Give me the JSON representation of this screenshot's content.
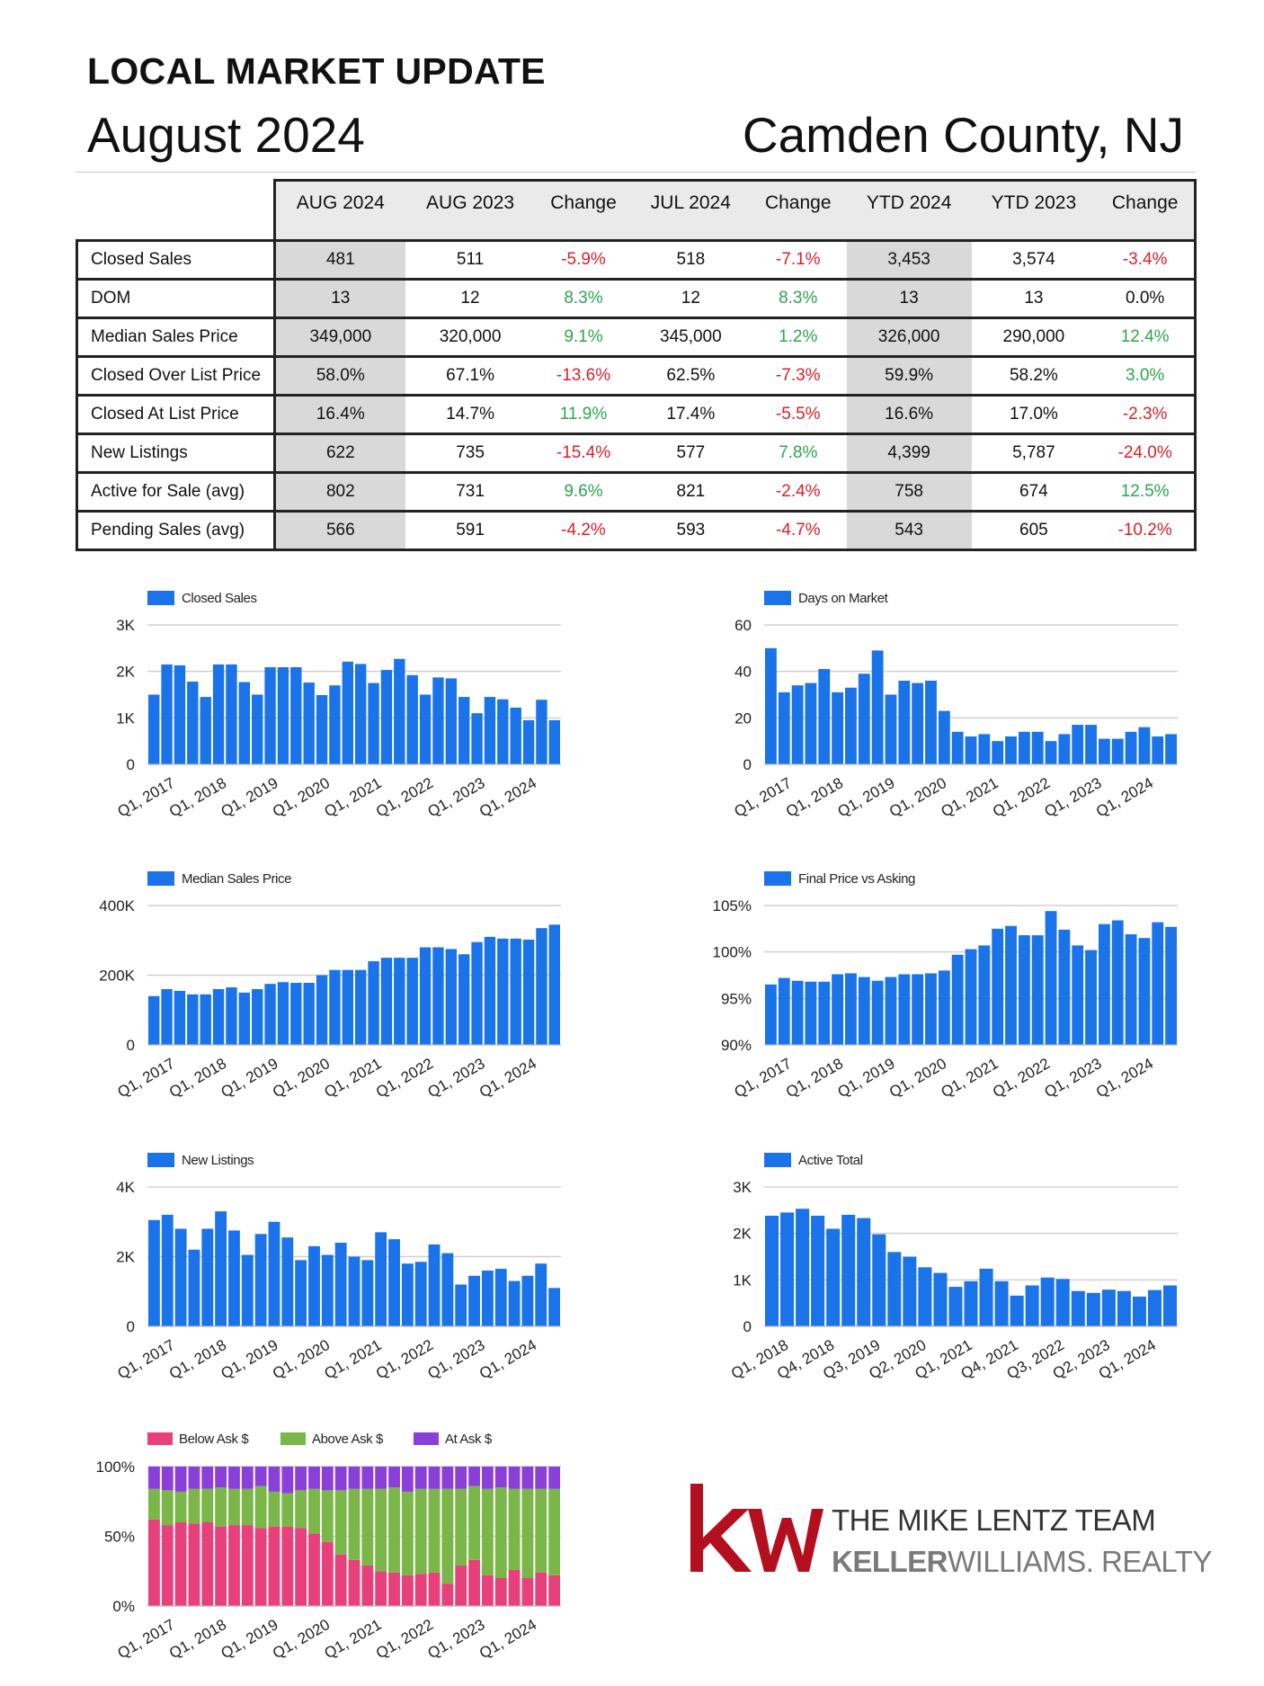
{
  "header": {
    "title": "LOCAL MARKET UPDATE",
    "month": "August 2024",
    "county": "Camden County, NJ"
  },
  "stats_table": {
    "columns": [
      "AUG 2024",
      "AUG 2023",
      "Change",
      "JUL 2024",
      "Change",
      "YTD 2024",
      "YTD 2023",
      "Change"
    ],
    "rows": [
      {
        "label": "Closed Sales",
        "cells": [
          "481",
          "511",
          "-5.9%",
          "518",
          "-7.1%",
          "3,453",
          "3,574",
          "-3.4%"
        ]
      },
      {
        "label": "DOM",
        "cells": [
          "13",
          "12",
          "8.3%",
          "12",
          "8.3%",
          "13",
          "13",
          "0.0%"
        ]
      },
      {
        "label": "Median Sales Price",
        "cells": [
          "349,000",
          "320,000",
          "9.1%",
          "345,000",
          "1.2%",
          "326,000",
          "290,000",
          "12.4%"
        ]
      },
      {
        "label": "Closed Over List Price",
        "cells": [
          "58.0%",
          "67.1%",
          "-13.6%",
          "62.5%",
          "-7.3%",
          "59.9%",
          "58.2%",
          "3.0%"
        ]
      },
      {
        "label": "Closed At List Price",
        "cells": [
          "16.4%",
          "14.7%",
          "11.9%",
          "17.4%",
          "-5.5%",
          "16.6%",
          "17.0%",
          "-2.3%"
        ]
      },
      {
        "label": "New Listings",
        "cells": [
          "622",
          "735",
          "-15.4%",
          "577",
          "7.8%",
          "4,399",
          "5,787",
          "-24.0%"
        ]
      },
      {
        "label": "Active for Sale (avg)",
        "cells": [
          "802",
          "731",
          "9.6%",
          "821",
          "-2.4%",
          "758",
          "674",
          "12.5%"
        ]
      },
      {
        "label": "Pending Sales (avg)",
        "cells": [
          "566",
          "591",
          "-4.2%",
          "593",
          "-4.7%",
          "543",
          "605",
          "-10.2%"
        ]
      }
    ],
    "colors": {
      "negative": "#d8212a",
      "positive": "#2ea44f",
      "shade": "#d9d9d9"
    }
  },
  "chart_data": [
    {
      "id": "closed-sales",
      "type": "bar",
      "legend": "Closed Sales",
      "color": "#1a73e8",
      "x_tick_labels": [
        "Q1, 2017",
        "Q1, 2018",
        "Q1, 2019",
        "Q1, 2020",
        "Q1, 2021",
        "Q1, 2022",
        "Q1, 2023",
        "Q1, 2024"
      ],
      "y_ticks": [
        0,
        1000,
        2000,
        3000
      ],
      "y_tick_labels": [
        "0",
        "1K",
        "2K",
        "3K"
      ],
      "ylim": [
        0,
        3000
      ],
      "values": [
        1500,
        2150,
        2130,
        1780,
        1450,
        2150,
        2150,
        1770,
        1500,
        2090,
        2090,
        2090,
        1760,
        1490,
        1700,
        2210,
        2160,
        1750,
        2030,
        2270,
        1920,
        1500,
        1870,
        1850,
        1450,
        1100,
        1450,
        1400,
        1220,
        950,
        1390,
        950
      ]
    },
    {
      "id": "days-on-market",
      "type": "bar",
      "legend": "Days on Market",
      "color": "#1a73e8",
      "x_tick_labels": [
        "Q1, 2017",
        "Q1, 2018",
        "Q1, 2019",
        "Q1, 2020",
        "Q1, 2021",
        "Q1, 2022",
        "Q1, 2023",
        "Q1, 2024"
      ],
      "y_ticks": [
        0,
        20,
        40,
        60
      ],
      "y_tick_labels": [
        "0",
        "20",
        "40",
        "60"
      ],
      "ylim": [
        0,
        60
      ],
      "values": [
        50,
        31,
        34,
        35,
        41,
        31,
        33,
        39,
        49,
        30,
        36,
        35,
        36,
        23,
        14,
        12,
        13,
        10,
        12,
        14,
        14,
        10,
        13,
        17,
        17,
        11,
        11,
        14,
        16,
        12,
        13
      ]
    },
    {
      "id": "median-sales-price",
      "type": "bar",
      "legend": "Median Sales Price",
      "color": "#1a73e8",
      "x_tick_labels": [
        "Q1, 2017",
        "Q1, 2018",
        "Q1, 2019",
        "Q1, 2020",
        "Q1, 2021",
        "Q1, 2022",
        "Q1, 2023",
        "Q1, 2024"
      ],
      "y_ticks": [
        0,
        200000,
        400000
      ],
      "y_tick_labels": [
        "0",
        "200K",
        "400K"
      ],
      "ylim": [
        0,
        400000
      ],
      "values": [
        140000,
        160000,
        155000,
        145000,
        145000,
        160000,
        165000,
        150000,
        160000,
        175000,
        180000,
        178000,
        178000,
        200000,
        215000,
        215000,
        215000,
        240000,
        250000,
        250000,
        250000,
        280000,
        280000,
        275000,
        260000,
        295000,
        310000,
        305000,
        305000,
        302000,
        335000,
        345000
      ]
    },
    {
      "id": "final-price-vs-asking",
      "type": "bar",
      "legend": "Final Price vs Asking",
      "color": "#1a73e8",
      "x_tick_labels": [
        "Q1, 2017",
        "Q1, 2018",
        "Q1, 2019",
        "Q1, 2020",
        "Q1, 2021",
        "Q1, 2022",
        "Q1, 2023",
        "Q1, 2024"
      ],
      "y_ticks": [
        90,
        95,
        100,
        105
      ],
      "y_tick_labels": [
        "90%",
        "95%",
        "100%",
        "105%"
      ],
      "ylim": [
        90,
        105
      ],
      "values": [
        96.5,
        97.2,
        96.9,
        96.8,
        96.8,
        97.6,
        97.7,
        97.3,
        96.9,
        97.3,
        97.6,
        97.6,
        97.7,
        98.0,
        99.7,
        100.3,
        100.7,
        102.5,
        102.8,
        101.8,
        101.8,
        104.4,
        102.4,
        100.7,
        100.2,
        103.0,
        103.4,
        101.9,
        101.5,
        103.2,
        102.7
      ]
    },
    {
      "id": "new-listings",
      "type": "bar",
      "legend": "New Listings",
      "color": "#1a73e8",
      "x_tick_labels": [
        "Q1, 2017",
        "Q1, 2018",
        "Q1, 2019",
        "Q1, 2020",
        "Q1, 2021",
        "Q1, 2022",
        "Q1, 2023",
        "Q1, 2024"
      ],
      "y_ticks": [
        0,
        2000,
        4000
      ],
      "y_tick_labels": [
        "0",
        "2K",
        "4K"
      ],
      "ylim": [
        0,
        4000
      ],
      "values": [
        3050,
        3200,
        2800,
        2200,
        2800,
        3300,
        2750,
        2050,
        2650,
        3000,
        2550,
        1900,
        2300,
        2050,
        2400,
        2000,
        1900,
        2700,
        2500,
        1800,
        1850,
        2350,
        2100,
        1200,
        1450,
        1600,
        1650,
        1300,
        1450,
        1800,
        1100
      ]
    },
    {
      "id": "active-total",
      "type": "bar",
      "legend": "Active Total",
      "color": "#1a73e8",
      "x_tick_labels": [
        "Q1, 2018",
        "Q4, 2018",
        "Q3, 2019",
        "Q2, 2020",
        "Q1, 2021",
        "Q4, 2021",
        "Q3, 2022",
        "Q2, 2023",
        "Q1, 2024"
      ],
      "y_ticks": [
        0,
        1000,
        2000,
        3000
      ],
      "y_tick_labels": [
        "0",
        "1K",
        "2K",
        "3K"
      ],
      "ylim": [
        0,
        3000
      ],
      "values": [
        2380,
        2450,
        2530,
        2380,
        2100,
        2400,
        2330,
        1980,
        1600,
        1500,
        1270,
        1150,
        850,
        970,
        1240,
        970,
        660,
        880,
        1050,
        1020,
        760,
        720,
        790,
        760,
        640,
        780,
        880
      ]
    },
    {
      "id": "sales-vs-ask",
      "type": "bar",
      "stacked": true,
      "legend_items": [
        {
          "name": "Below Ask $",
          "color": "#e8407a"
        },
        {
          "name": "Above Ask $",
          "color": "#7ab648"
        },
        {
          "name": "At Ask $",
          "color": "#8b3fd9"
        }
      ],
      "x_tick_labels": [
        "Q1, 2017",
        "Q1, 2018",
        "Q1, 2019",
        "Q1, 2020",
        "Q1, 2021",
        "Q1, 2022",
        "Q1, 2023",
        "Q1, 2024"
      ],
      "y_ticks": [
        0,
        50,
        100
      ],
      "y_tick_labels": [
        "0%",
        "50%",
        "100%"
      ],
      "ylim": [
        0,
        100
      ],
      "series": [
        {
          "name": "Below Ask $",
          "values": [
            62,
            58,
            60,
            59,
            60,
            57,
            58,
            58,
            56,
            57,
            57,
            56,
            52,
            46,
            37,
            33,
            29,
            25,
            24,
            22,
            23,
            24,
            16,
            29,
            33,
            22,
            20,
            26,
            20,
            24,
            22
          ]
        },
        {
          "name": "Above Ask $",
          "values": [
            22,
            25,
            22,
            25,
            24,
            28,
            26,
            26,
            30,
            25,
            24,
            27,
            32,
            37,
            46,
            51,
            55,
            59,
            61,
            60,
            61,
            60,
            68,
            55,
            53,
            62,
            65,
            58,
            64,
            60,
            62
          ]
        },
        {
          "name": "At Ask $",
          "values": [
            16,
            17,
            18,
            16,
            16,
            15,
            16,
            16,
            14,
            18,
            19,
            17,
            16,
            17,
            17,
            16,
            16,
            16,
            15,
            18,
            16,
            16,
            16,
            16,
            14,
            16,
            15,
            16,
            16,
            16,
            16
          ]
        }
      ]
    }
  ],
  "logo": {
    "mark": "kw",
    "team_name": "THE MIKE LENTZ TEAM",
    "brokerage_bold": "KELLER",
    "brokerage_rest": "WILLIAMS. REALTY",
    "mark_color": "#b40f1e"
  }
}
